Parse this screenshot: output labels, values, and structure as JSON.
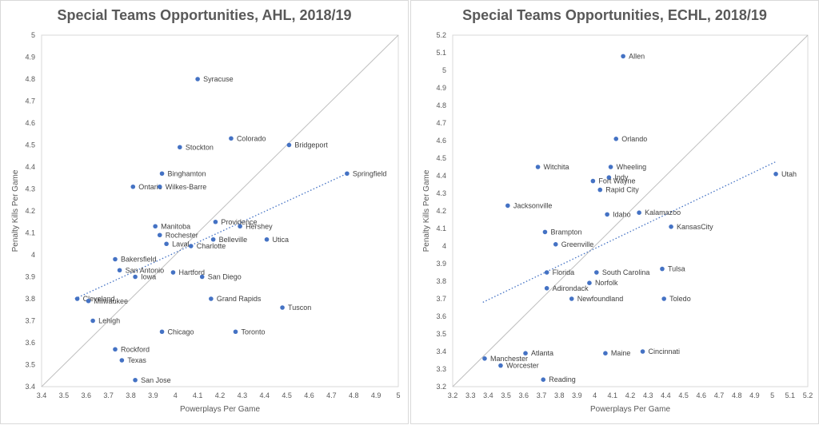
{
  "chart_data": [
    {
      "type": "scatter",
      "title": "Special Teams Opportunities, AHL, 2018/19",
      "xlabel": "Powerplays Per Game",
      "ylabel": "Penalty Kills Per Game",
      "xlim": [
        3.4,
        5.0
      ],
      "ylim": [
        3.4,
        5.0
      ],
      "xticks": [
        "3.4",
        "3.5",
        "3.6",
        "3.7",
        "3.8",
        "3.9",
        "4",
        "4.1",
        "4.2",
        "4.3",
        "4.4",
        "4.5",
        "4.6",
        "4.7",
        "4.8",
        "4.9",
        "5"
      ],
      "yticks": [
        "3.4",
        "3.5",
        "3.6",
        "3.7",
        "3.8",
        "3.9",
        "4",
        "4.1",
        "4.2",
        "4.3",
        "4.4",
        "4.5",
        "4.6",
        "4.7",
        "4.8",
        "4.9",
        "5"
      ],
      "grid": false,
      "reference_line": "y = x",
      "trendline": {
        "style": "dotted",
        "x": [
          3.55,
          4.77
        ],
        "y": [
          3.8,
          4.37
        ]
      },
      "marker_color": "#4472c4",
      "points": [
        {
          "label": "Syracuse",
          "x": 4.1,
          "y": 4.8
        },
        {
          "label": "Colorado",
          "x": 4.25,
          "y": 4.53
        },
        {
          "label": "Bridgeport",
          "x": 4.51,
          "y": 4.5
        },
        {
          "label": "Stockton",
          "x": 4.02,
          "y": 4.49
        },
        {
          "label": "Springfield",
          "x": 4.77,
          "y": 4.37
        },
        {
          "label": "Binghamton",
          "x": 3.94,
          "y": 4.37
        },
        {
          "label": "Ontario",
          "x": 3.81,
          "y": 4.31
        },
        {
          "label": "Wilkes-Barre",
          "x": 3.93,
          "y": 4.31
        },
        {
          "label": "Providence",
          "x": 4.18,
          "y": 4.15
        },
        {
          "label": "Hershey",
          "x": 4.29,
          "y": 4.13
        },
        {
          "label": "Manitoba",
          "x": 3.91,
          "y": 4.13
        },
        {
          "label": "Rochester",
          "x": 3.93,
          "y": 4.09
        },
        {
          "label": "Laval",
          "x": 3.96,
          "y": 4.05
        },
        {
          "label": "Belleville",
          "x": 4.17,
          "y": 4.07
        },
        {
          "label": "Utica",
          "x": 4.41,
          "y": 4.07
        },
        {
          "label": "Charlotte",
          "x": 4.07,
          "y": 4.04
        },
        {
          "label": "Bakersfield",
          "x": 3.73,
          "y": 3.98
        },
        {
          "label": "San Antonio",
          "x": 3.75,
          "y": 3.93
        },
        {
          "label": "Hartford",
          "x": 3.99,
          "y": 3.92
        },
        {
          "label": "Iowa",
          "x": 3.82,
          "y": 3.9
        },
        {
          "label": "San Diego",
          "x": 4.12,
          "y": 3.9
        },
        {
          "label": "Cleveland",
          "x": 3.56,
          "y": 3.8
        },
        {
          "label": "Milwaukee",
          "x": 3.61,
          "y": 3.79
        },
        {
          "label": "Grand Rapids",
          "x": 4.16,
          "y": 3.8
        },
        {
          "label": "Tuscon",
          "x": 4.48,
          "y": 3.76
        },
        {
          "label": "Lehigh",
          "x": 3.63,
          "y": 3.7
        },
        {
          "label": "Chicago",
          "x": 3.94,
          "y": 3.65
        },
        {
          "label": "Toronto",
          "x": 4.27,
          "y": 3.65
        },
        {
          "label": "Rockford",
          "x": 3.73,
          "y": 3.57
        },
        {
          "label": "Texas",
          "x": 3.76,
          "y": 3.52
        },
        {
          "label": "San Jose",
          "x": 3.82,
          "y": 3.43
        }
      ]
    },
    {
      "type": "scatter",
      "title": "Special Teams Opportunities, ECHL, 2018/19",
      "xlabel": "Powerplays Per Game",
      "ylabel": "Penalty Kills Per Game",
      "xlim": [
        3.2,
        5.2
      ],
      "ylim": [
        3.2,
        5.2
      ],
      "xticks": [
        "3.2",
        "3.3",
        "3.4",
        "3.5",
        "3.6",
        "3.7",
        "3.8",
        "3.9",
        "4",
        "4.1",
        "4.2",
        "4.3",
        "4.4",
        "4.5",
        "4.6",
        "4.7",
        "4.8",
        "4.9",
        "5",
        "5.1",
        "5.2"
      ],
      "yticks": [
        "3.2",
        "3.3",
        "3.4",
        "3.5",
        "3.6",
        "3.7",
        "3.8",
        "3.9",
        "4",
        "4.1",
        "4.2",
        "4.3",
        "4.4",
        "4.5",
        "4.6",
        "4.7",
        "4.8",
        "4.9",
        "5",
        "5.1",
        "5.2"
      ],
      "grid": false,
      "reference_line": "y = x",
      "trendline": {
        "style": "dotted",
        "x": [
          3.37,
          5.02
        ],
        "y": [
          3.68,
          4.48
        ]
      },
      "marker_color": "#4472c4",
      "points": [
        {
          "label": "Allen",
          "x": 4.16,
          "y": 5.08
        },
        {
          "label": "Orlando",
          "x": 4.12,
          "y": 4.61
        },
        {
          "label": "Witchita",
          "x": 3.68,
          "y": 4.45
        },
        {
          "label": "Wheeling",
          "x": 4.09,
          "y": 4.45
        },
        {
          "label": "Utah",
          "x": 5.02,
          "y": 4.41
        },
        {
          "label": "Indy",
          "x": 4.08,
          "y": 4.39
        },
        {
          "label": "Fort Wayne",
          "x": 3.99,
          "y": 4.37
        },
        {
          "label": "Rapid City",
          "x": 4.03,
          "y": 4.32
        },
        {
          "label": "Jacksonville",
          "x": 3.51,
          "y": 4.23
        },
        {
          "label": "Kalamazoo",
          "x": 4.25,
          "y": 4.19
        },
        {
          "label": "Idaho",
          "x": 4.07,
          "y": 4.18
        },
        {
          "label": "KansasCity",
          "x": 4.43,
          "y": 4.11
        },
        {
          "label": "Brampton",
          "x": 3.72,
          "y": 4.08
        },
        {
          "label": "Greenville",
          "x": 3.78,
          "y": 4.01
        },
        {
          "label": "Tulsa",
          "x": 4.38,
          "y": 3.87
        },
        {
          "label": "Florida",
          "x": 3.73,
          "y": 3.85
        },
        {
          "label": "South Carolina",
          "x": 4.01,
          "y": 3.85
        },
        {
          "label": "Norfolk",
          "x": 3.97,
          "y": 3.79
        },
        {
          "label": "Adirondack",
          "x": 3.73,
          "y": 3.76
        },
        {
          "label": "Newfoundland",
          "x": 3.87,
          "y": 3.7
        },
        {
          "label": "Toledo",
          "x": 4.39,
          "y": 3.7
        },
        {
          "label": "Atlanta",
          "x": 3.61,
          "y": 3.39
        },
        {
          "label": "Maine",
          "x": 4.06,
          "y": 3.39
        },
        {
          "label": "Cincinnati",
          "x": 4.27,
          "y": 3.4
        },
        {
          "label": "Manchester",
          "x": 3.38,
          "y": 3.36
        },
        {
          "label": "Worcester",
          "x": 3.47,
          "y": 3.32
        },
        {
          "label": "Reading",
          "x": 3.71,
          "y": 3.24
        }
      ]
    }
  ]
}
